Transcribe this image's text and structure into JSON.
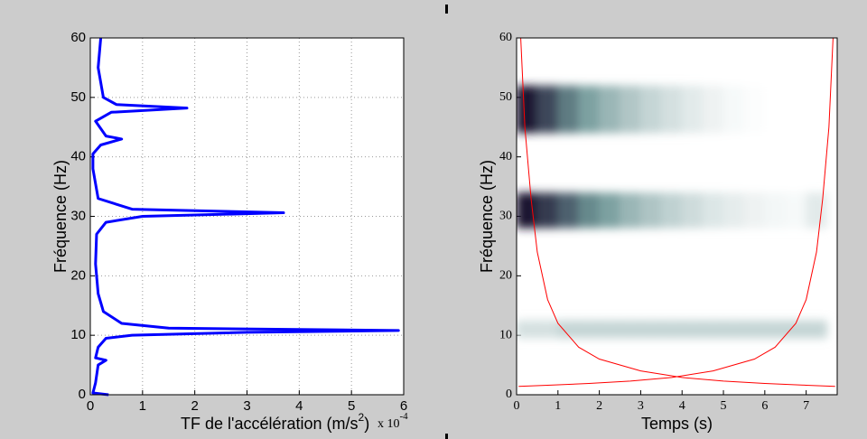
{
  "chart_data": [
    {
      "type": "line",
      "xlabel": "TF de l'accélération (m/s",
      "xlabel_sup": "2",
      "xlabel_end": ")",
      "ylabel": "Fréquence (Hz)",
      "x_multiplier": "x 10",
      "x_multiplier_exponent": "-4",
      "xlim": [
        0,
        6
      ],
      "xticks": [
        0,
        1,
        2,
        3,
        4,
        5,
        6
      ],
      "ylim": [
        0,
        60
      ],
      "yticks": [
        0,
        10,
        20,
        30,
        40,
        50,
        60
      ],
      "grid": true,
      "series": [
        {
          "color": "#0000ff",
          "y": [
            0,
            0.3,
            2,
            5,
            5.8,
            6.2,
            8,
            9.5,
            10,
            10.5,
            10.8,
            11.2,
            12,
            14,
            17,
            22,
            27,
            29,
            30,
            30.6,
            31.2,
            33,
            38,
            40.5,
            42,
            43,
            43.5,
            46,
            47.5,
            48.2,
            48.8,
            50,
            55,
            60
          ],
          "values": [
            0.35,
            0.05,
            0.1,
            0.15,
            0.3,
            0.1,
            0.15,
            0.3,
            0.8,
            3,
            5.9,
            1.5,
            0.6,
            0.25,
            0.15,
            0.1,
            0.12,
            0.3,
            1,
            3.7,
            0.8,
            0.15,
            0.05,
            0.05,
            0.2,
            0.6,
            0.3,
            0.1,
            0.4,
            1.85,
            0.5,
            0.25,
            0.15,
            0.2
          ]
        }
      ]
    },
    {
      "type": "heatmap",
      "xlabel": "Temps (s)",
      "ylabel": "Fréquence (Hz)",
      "xlim": [
        0,
        7.75
      ],
      "xticks": [
        0,
        1,
        2,
        3,
        4,
        5,
        6,
        7
      ],
      "ylim": [
        0,
        60
      ],
      "yticks": [
        0,
        10,
        20,
        30,
        40,
        50,
        60
      ],
      "grid": false,
      "colormap": [
        "#ffffff",
        "#6e9696",
        "#1e1232"
      ],
      "x": [
        0.25,
        0.75,
        1.25,
        1.75,
        2.25,
        2.75,
        3.25,
        3.75,
        4.25,
        4.75,
        5.25,
        5.75,
        6.25,
        6.75,
        7.25
      ],
      "bands": [
        {
          "frequency": 48,
          "bandwidth": 4,
          "values": [
            1,
            0.8,
            0.6,
            0.45,
            0.35,
            0.27,
            0.2,
            0.15,
            0.1,
            0.06,
            0.03,
            0.01,
            0,
            0,
            0
          ]
        },
        {
          "frequency": 31,
          "bandwidth": 3,
          "values": [
            1,
            0.85,
            0.7,
            0.55,
            0.45,
            0.35,
            0.28,
            0.22,
            0.17,
            0.12,
            0.09,
            0.06,
            0.04,
            0.03,
            0.1
          ]
        },
        {
          "frequency": 11,
          "bandwidth": 1.5,
          "values": [
            0.15,
            0.15,
            0.2,
            0.2,
            0.2,
            0.2,
            0.2,
            0.2,
            0.2,
            0.2,
            0.2,
            0.2,
            0.2,
            0.2,
            0.2
          ]
        }
      ],
      "series": [
        {
          "color": "#ff0000",
          "x": [
            0.1,
            0.2,
            0.35,
            0.5,
            0.75,
            1,
            1.5,
            2,
            3,
            4,
            5,
            6,
            7,
            7.7
          ],
          "values": [
            60,
            45,
            33,
            24,
            16,
            12,
            8,
            6,
            4,
            2.9,
            2.3,
            1.9,
            1.6,
            1.4
          ]
        },
        {
          "color": "#ff0000",
          "x": [
            7.65,
            7.55,
            7.4,
            7.25,
            7.0,
            6.75,
            6.25,
            5.75,
            4.75,
            3.75,
            2.75,
            1.75,
            0.75,
            0.05
          ],
          "values": [
            60,
            45,
            33,
            24,
            16,
            12,
            8,
            6,
            4,
            2.9,
            2.3,
            1.9,
            1.6,
            1.4
          ]
        }
      ]
    }
  ]
}
